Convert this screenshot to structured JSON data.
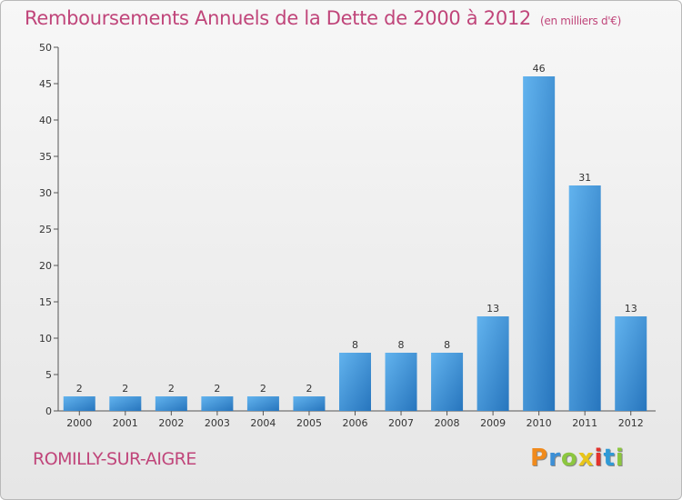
{
  "header": {
    "title": "Remboursements Annuels de la Dette de 2000 à 2012",
    "unit": "(en milliers d'€)"
  },
  "footer": {
    "commune": "ROMILLY-SUR-AIGRE",
    "logo_letters": [
      "P",
      "r",
      "o",
      "x",
      "i",
      "t",
      "i"
    ],
    "logo_colors": [
      "#f08a1c",
      "#3c8fd6",
      "#8cc63f",
      "#e8c51a",
      "#e2332d",
      "#2f9ad6",
      "#8cc63f"
    ]
  },
  "chart_data": {
    "type": "bar",
    "title": "Remboursements Annuels de la Dette de 2000 à 2012",
    "categories": [
      "2000",
      "2001",
      "2002",
      "2003",
      "2004",
      "2005",
      "2006",
      "2007",
      "2008",
      "2009",
      "2010",
      "2011",
      "2012"
    ],
    "values": [
      2,
      2,
      2,
      2,
      2,
      2,
      8,
      8,
      8,
      13,
      46,
      31,
      13
    ],
    "ylim": [
      0,
      50
    ],
    "yticks": [
      0,
      5,
      10,
      15,
      20,
      25,
      30,
      35,
      40,
      45,
      50
    ],
    "grid": false,
    "bar_color": "#3f95dc"
  }
}
